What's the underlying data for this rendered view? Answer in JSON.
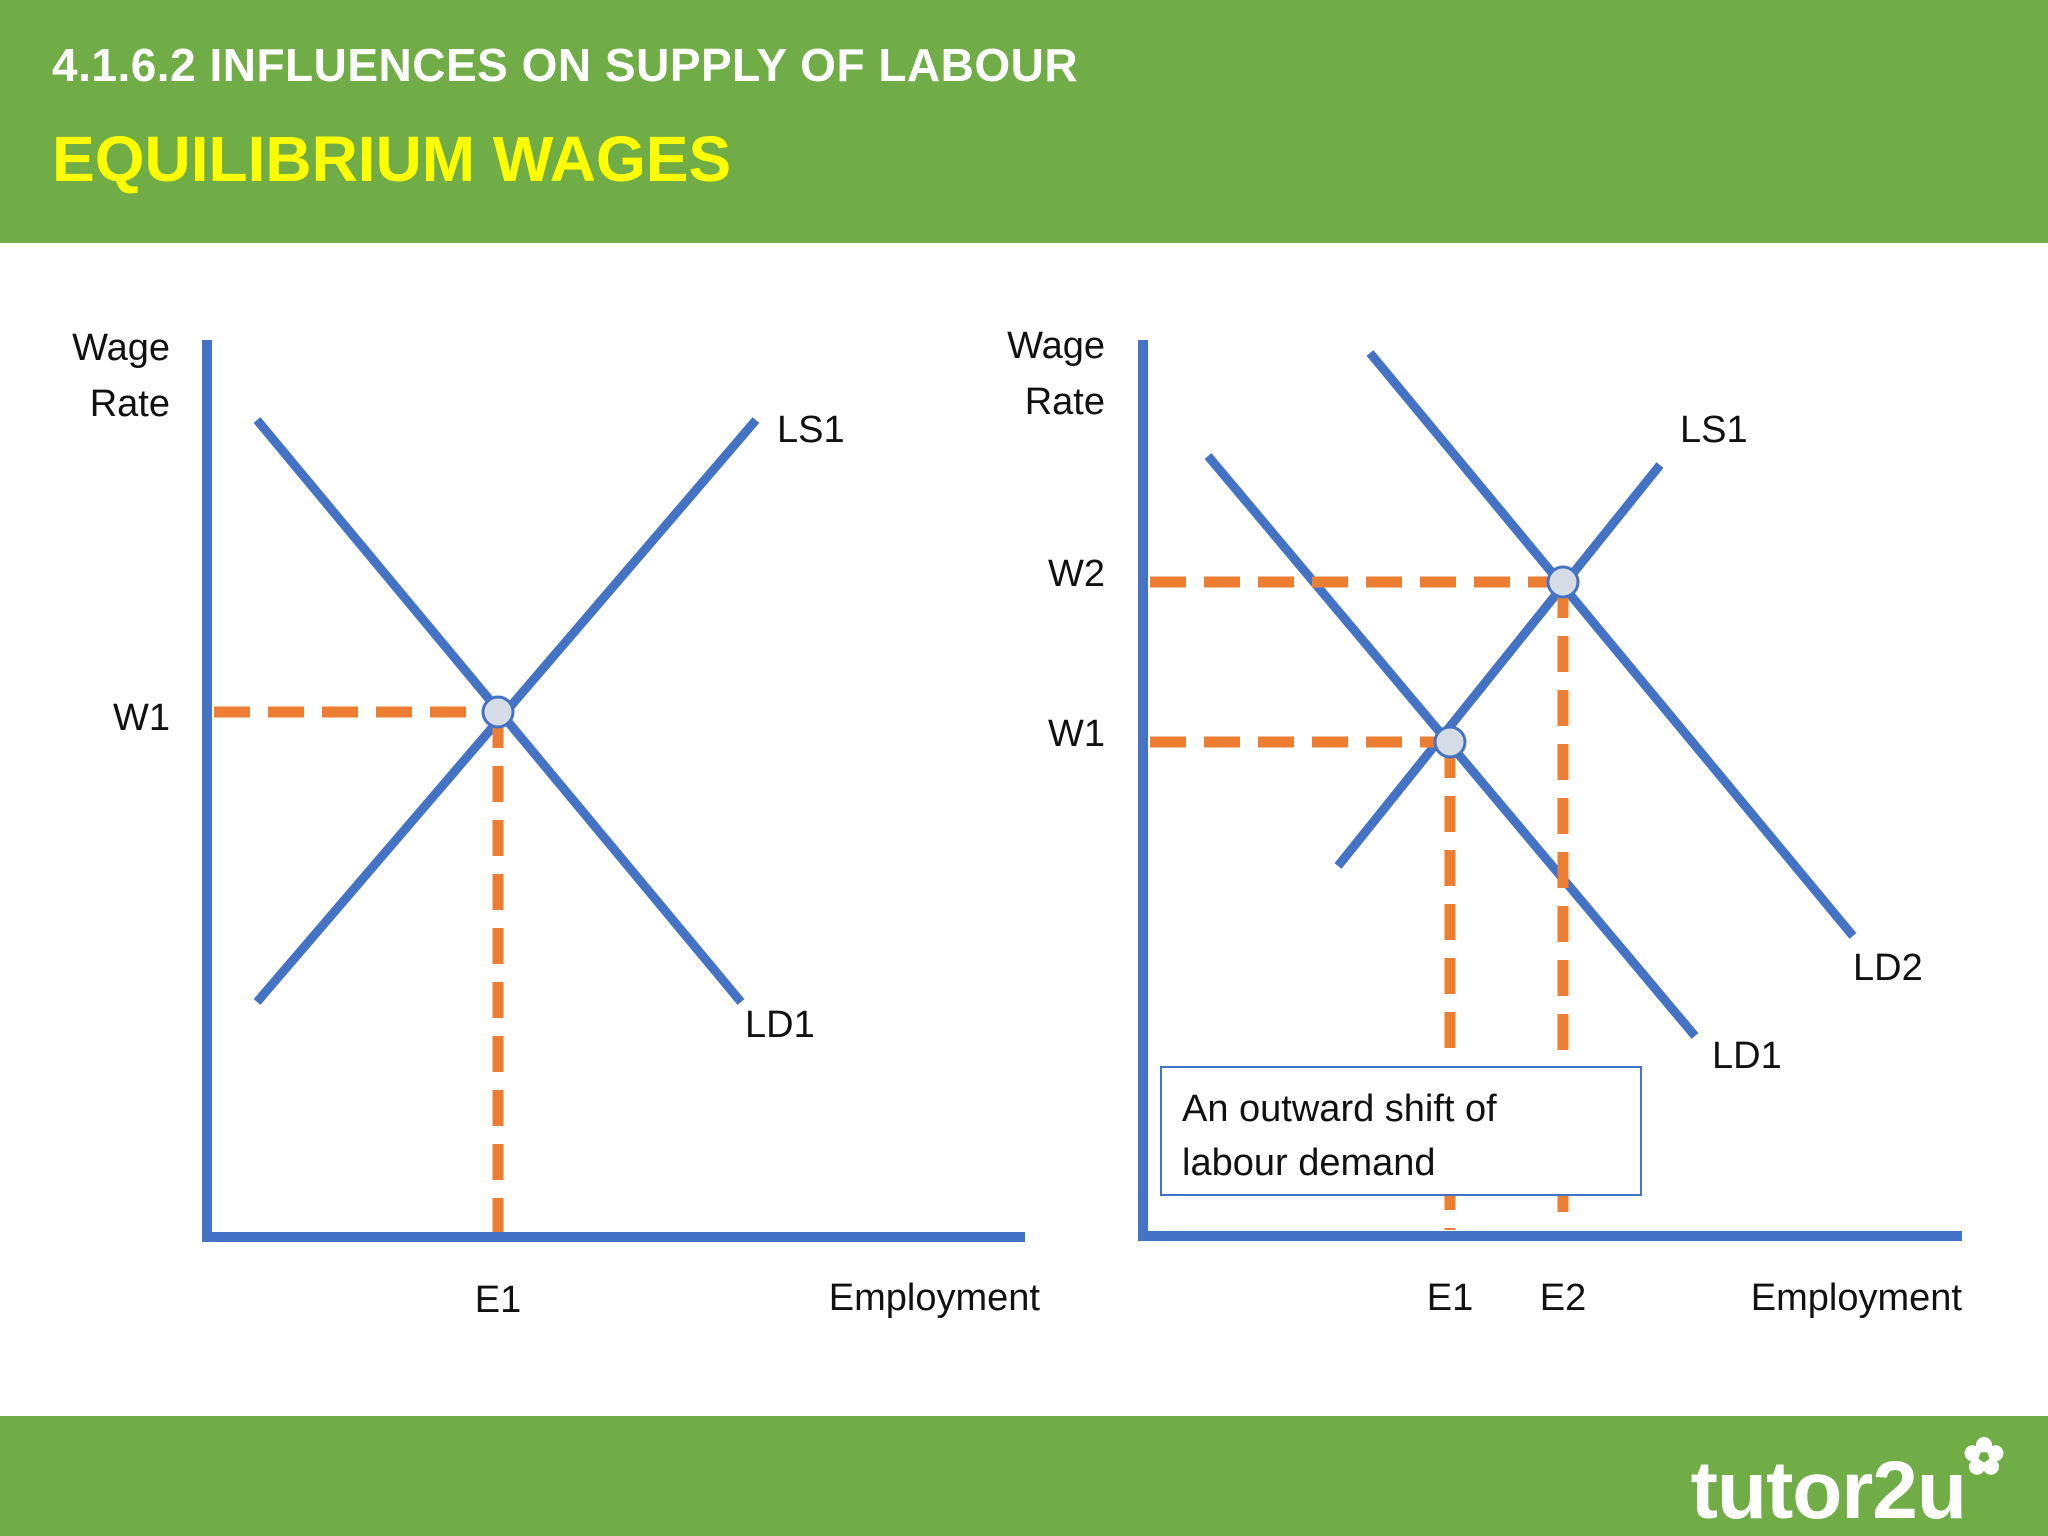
{
  "header": {
    "subtitle": "4.1.6.2 INFLUENCES ON SUPPLY OF LABOUR",
    "title": "EQUILIBRIUM WAGES"
  },
  "colors": {
    "header_bg": "#70ad47",
    "title_text": "#ffff00",
    "curves": "#4472c4",
    "guides": "#ed7d31"
  },
  "diagram_left": {
    "y_axis_label_line1": "Wage",
    "y_axis_label_line2": "Rate",
    "x_axis_label": "Employment",
    "supply_label": "LS1",
    "demand_label": "LD1",
    "wage_label": "W1",
    "employment_label": "E1"
  },
  "diagram_right": {
    "y_axis_label_line1": "Wage",
    "y_axis_label_line2": "Rate",
    "x_axis_label": "Employment",
    "supply_label": "LS1",
    "demand1_label": "LD1",
    "demand2_label": "LD2",
    "wage1_label": "W1",
    "wage2_label": "W2",
    "employment1_label": "E1",
    "employment2_label": "E2",
    "note_line1": "An outward shift of",
    "note_line2": "labour demand"
  },
  "footer": {
    "logo_text": "tutor2u",
    "logo_icon": "flower-icon"
  }
}
